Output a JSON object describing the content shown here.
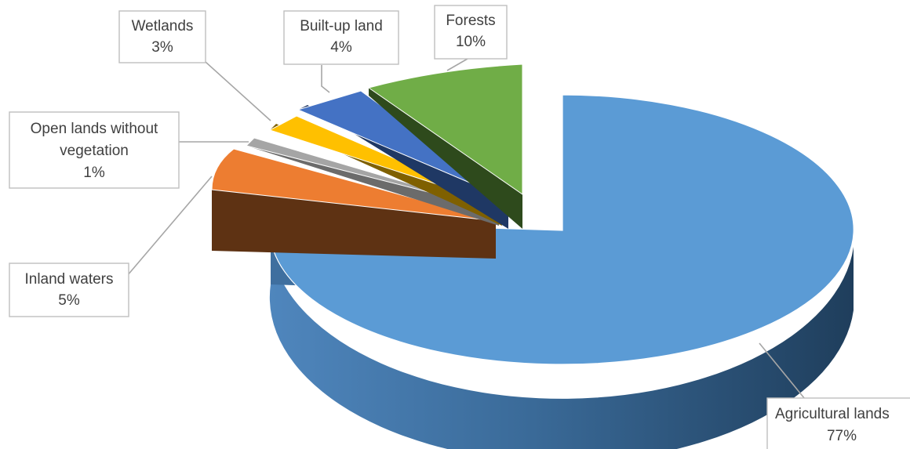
{
  "chart_data": {
    "type": "pie",
    "style": "3d-exploded",
    "title": "",
    "legend": "none",
    "slices": [
      {
        "name": "Agricultural lands",
        "value": 77,
        "label": "77%",
        "color": "#5b9bd5"
      },
      {
        "name": "Forests",
        "value": 10,
        "label": "10%",
        "color": "#70ad47"
      },
      {
        "name": "Built-up land",
        "value": 4,
        "label": "4%",
        "color": "#4472c4"
      },
      {
        "name": "Wetlands",
        "value": 3,
        "label": "3%",
        "color": "#ffc000"
      },
      {
        "name": "Open lands without vegetation",
        "value": 1,
        "label": "1%",
        "color": "#a5a5a5"
      },
      {
        "name": "Inland waters",
        "value": 5,
        "label": "5%",
        "color": "#ed7d31"
      }
    ]
  }
}
